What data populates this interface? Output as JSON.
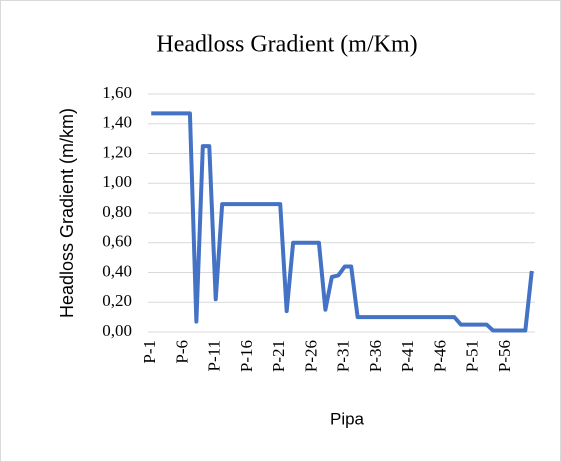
{
  "chart_data": {
    "type": "line",
    "title": "Headloss Gradient (m/Km)",
    "x_label": "Pipa",
    "y_label": "Headloss Gradient (m/km)",
    "categories": [
      "P-1",
      null,
      null,
      null,
      null,
      "P-6",
      null,
      null,
      null,
      null,
      "P-11",
      null,
      null,
      null,
      null,
      "P-16",
      null,
      null,
      null,
      null,
      "P-21",
      null,
      null,
      null,
      null,
      "P-26",
      null,
      null,
      null,
      null,
      "P-31",
      null,
      null,
      null,
      null,
      "P-36",
      null,
      null,
      null,
      null,
      "P-41",
      null,
      null,
      null,
      null,
      "P-46",
      null,
      null,
      null,
      null,
      "P-51",
      null,
      null,
      null,
      null,
      "P-56",
      null,
      null,
      null,
      null
    ],
    "series": [
      {
        "name": "Headloss Gradient",
        "color": "#4472c4",
        "values": [
          1.47,
          1.47,
          1.47,
          1.47,
          1.47,
          1.47,
          1.47,
          0.07,
          1.25,
          1.25,
          0.22,
          0.86,
          0.86,
          0.86,
          0.86,
          0.86,
          0.86,
          0.86,
          0.86,
          0.86,
          0.86,
          0.14,
          0.6,
          0.6,
          0.6,
          0.6,
          0.6,
          0.15,
          0.37,
          0.38,
          0.44,
          0.44,
          0.1,
          0.1,
          0.1,
          0.1,
          0.1,
          0.1,
          0.1,
          0.1,
          0.1,
          0.1,
          0.1,
          0.1,
          0.1,
          0.1,
          0.1,
          0.1,
          0.05,
          0.05,
          0.05,
          0.05,
          0.05,
          0.01,
          0.01,
          0.01,
          0.01,
          0.01,
          0.01,
          0.41
        ]
      }
    ],
    "ylim": [
      0,
      1.6
    ],
    "yticks": [
      {
        "value": 0,
        "label": "0,00"
      },
      {
        "value": 0.2,
        "label": "0,20"
      },
      {
        "value": 0.4,
        "label": "0,40"
      },
      {
        "value": 0.6,
        "label": "0,60"
      },
      {
        "value": 0.8,
        "label": "0,80"
      },
      {
        "value": 1.0,
        "label": "1,00"
      },
      {
        "value": 1.2,
        "label": "1,20"
      },
      {
        "value": 1.4,
        "label": "1,40"
      },
      {
        "value": 1.6,
        "label": "1,60"
      }
    ],
    "grid": true
  }
}
